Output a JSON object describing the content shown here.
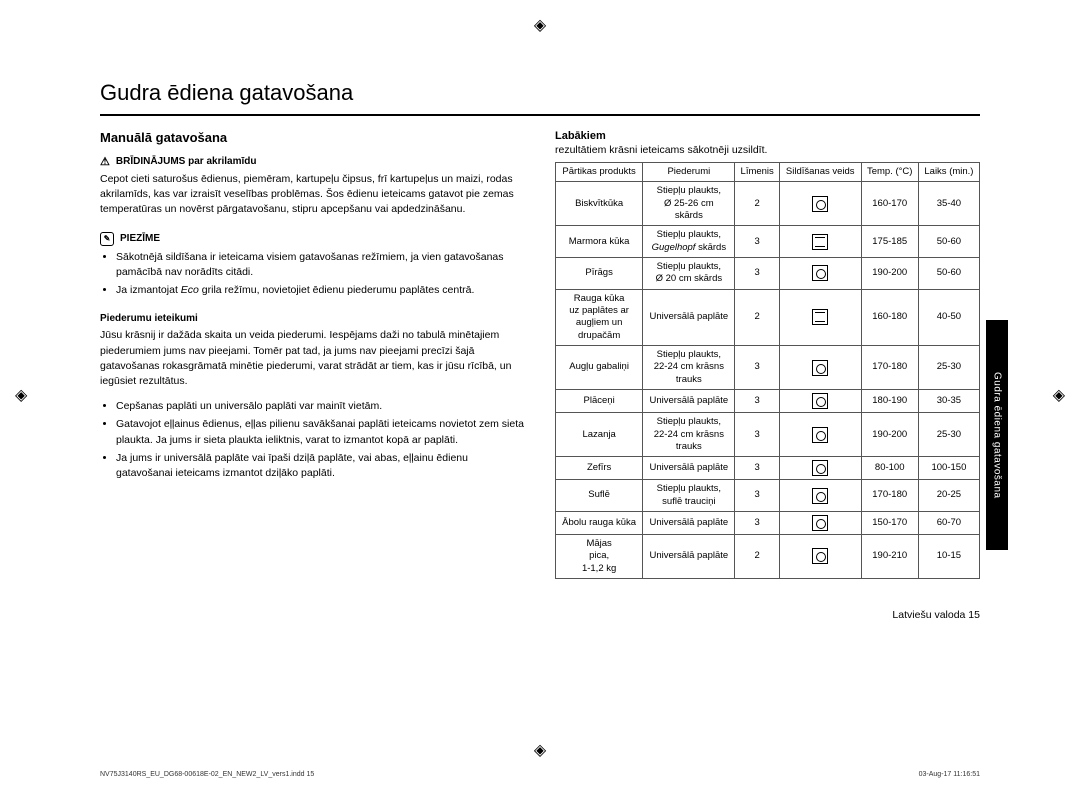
{
  "title": "Gudra ēdiena gatavošana",
  "left": {
    "heading": "Manuālā gatavošana",
    "warning_label": "BRĪDINĀJUMS par akrilamīdu",
    "warning_text": "Cepot cieti saturošus ēdienus, piemēram, kartupeļu čipsus, frī kartupeļus un maizi, rodas akrilamīds, kas var izraisīt veselības problēmas. Šos ēdienu ieteicams gatavot pie zemas temperatūras un novērst pārgatavošanu, stipru apcepšanu vai apdedzināšanu.",
    "note_label": "PIEZĪME",
    "note_items": [
      "Sākotnējā sildīšana ir ieteicama visiem gatavošanas režīmiem, ja vien gatavošanas pamācībā nav norādīts citādi.",
      "Ja izmantojat Eco grila režīmu, novietojiet ēdienu piederumu paplātes centrā."
    ],
    "sub_label": "Piederumu ieteikumi",
    "sub_text": "Jūsu krāsnij ir dažāda skaita un veida piederumi. Iespējams daži no tabulā minētajiem piederumiem jums nav pieejami. Tomēr pat tad, ja jums nav pieejami precīzi šajā gatavošanas rokasgrāmatā minētie piederumi, varat strādāt ar tiem, kas ir jūsu rīcībā, un iegūsiet rezultātus.",
    "sub_items": [
      "Cepšanas paplāti un universālo paplāti var mainīt vietām.",
      "Gatavojot eļļainus ēdienus, eļļas pilienu savākšanai paplāti ieteicams novietot zem sieta plaukta. Ja jums ir sieta plaukta ieliktnis, varat to izmantot kopā ar paplāti.",
      "Ja jums ir universālā paplāte vai īpaši dziļā paplāte, vai abas, eļļainu ēdienu gatavošanai ieteicams izmantot dziļāko paplāti."
    ]
  },
  "right": {
    "sub_heading": "Labākiem",
    "sub_desc": "rezultātiem krāsni ieteicams sākotnēji uzsildīt.",
    "headers": [
      "Pārtikas produkts",
      "Piederumi",
      "Līmenis",
      "Sildīšanas veids",
      "Temp. (°C)",
      "Laiks (min.)"
    ],
    "rows": [
      {
        "product": "Biskvītkūka",
        "acc": "Stiepļu plaukts,\nØ 25-26 cm\nskārds",
        "level": "2",
        "mode": "fan",
        "temp": "160-170",
        "time": "35-40"
      },
      {
        "product": "Marmora kūka",
        "acc": "Stiepļu plaukts,\nGugelhopf skārds",
        "acc_italic": "Gugelhopf",
        "level": "3",
        "mode": "top",
        "temp": "175-185",
        "time": "50-60"
      },
      {
        "product": "Pīrāgs",
        "acc": "Stiepļu plaukts,\nØ 20 cm skārds",
        "level": "3",
        "mode": "fan",
        "temp": "190-200",
        "time": "50-60"
      },
      {
        "product": "Rauga kūka\nuz paplātes ar\naugļiem un\ndrupačām",
        "acc": "Universālā paplāte",
        "level": "2",
        "mode": "top",
        "temp": "160-180",
        "time": "40-50"
      },
      {
        "product": "Augļu gabaliņi",
        "acc": "Stiepļu plaukts,\n22-24 cm krāsns\ntrauks",
        "level": "3",
        "mode": "fan",
        "temp": "170-180",
        "time": "25-30"
      },
      {
        "product": "Plāceņi",
        "acc": "Universālā paplāte",
        "level": "3",
        "mode": "fan",
        "temp": "180-190",
        "time": "30-35"
      },
      {
        "product": "Lazanja",
        "acc": "Stiepļu plaukts,\n22-24 cm krāsns\ntrauks",
        "level": "3",
        "mode": "fan",
        "temp": "190-200",
        "time": "25-30"
      },
      {
        "product": "Zefīrs",
        "acc": "Universālā paplāte",
        "level": "3",
        "mode": "fan",
        "temp": "80-100",
        "time": "100-150"
      },
      {
        "product": "Suflē",
        "acc": "Stiepļu plaukts,\nsuflē trauciņi",
        "level": "3",
        "mode": "fan",
        "temp": "170-180",
        "time": "20-25"
      },
      {
        "product": "Ābolu rauga kūka",
        "acc": "Universālā paplāte",
        "level": "3",
        "mode": "fan",
        "temp": "150-170",
        "time": "60-70"
      },
      {
        "product": "Mājas\npica,\n1-1,2 kg",
        "acc": "Universālā paplāte",
        "level": "2",
        "mode": "fan",
        "temp": "190-210",
        "time": "10-15"
      }
    ]
  },
  "side_tab": "Gudra ēdiena gatavošana",
  "footer_page": "Latviešu valoda 15",
  "print_left": "NV75J3140RS_EU_DG68-00618E-02_EN_NEW2_LV_vers1.indd   15",
  "print_right": "03-Aug-17   11:16:51"
}
